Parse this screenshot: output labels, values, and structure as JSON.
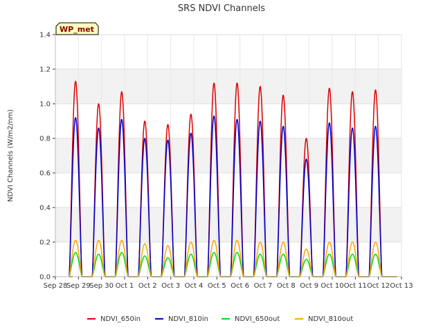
{
  "chart_data": {
    "type": "line",
    "title": "SRS NDVI Channels",
    "ylabel": "NDVI Channels (W/m2/nm)",
    "xlabel": "",
    "badge": "WP_met",
    "ylim": [
      0,
      1.4
    ],
    "yticks": [
      "0.0",
      "0.2",
      "0.4",
      "0.6",
      "0.8",
      "1.0",
      "1.2",
      "1.4"
    ],
    "ytick_values": [
      0,
      0.2,
      0.4,
      0.6,
      0.8,
      1.0,
      1.2,
      1.4
    ],
    "xlim": [
      0,
      15
    ],
    "xticks": [
      "Sep 28",
      "Sep 29",
      "Sep 30",
      "Oct 1",
      "Oct 2",
      "Oct 3",
      "Oct 4",
      "Oct 5",
      "Oct 6",
      "Oct 7",
      "Oct 8",
      "Oct 9",
      "Oct 10",
      "Oct 11",
      "Oct 12",
      "Oct 13"
    ],
    "legend_position": "bottom",
    "grid_bands": true,
    "series": [
      {
        "name": "NDVI_650in",
        "color": "#dd0000",
        "daily_peaks": [
          1.13,
          1.0,
          1.07,
          0.9,
          0.88,
          0.94,
          1.12,
          1.12,
          1.1,
          1.05,
          0.8,
          1.09,
          1.07,
          1.08
        ]
      },
      {
        "name": "NDVI_810in",
        "color": "#0000cc",
        "daily_peaks": [
          0.92,
          0.86,
          0.91,
          0.8,
          0.79,
          0.83,
          0.93,
          0.91,
          0.9,
          0.87,
          0.68,
          0.89,
          0.86,
          0.87
        ]
      },
      {
        "name": "NDVI_650out",
        "color": "#00dd00",
        "daily_peaks": [
          0.14,
          0.13,
          0.14,
          0.12,
          0.11,
          0.13,
          0.14,
          0.14,
          0.13,
          0.13,
          0.1,
          0.13,
          0.13,
          0.13
        ]
      },
      {
        "name": "NDVI_810out",
        "color": "#ffa500",
        "daily_peaks": [
          0.21,
          0.21,
          0.21,
          0.19,
          0.18,
          0.2,
          0.21,
          0.21,
          0.2,
          0.2,
          0.16,
          0.2,
          0.2,
          0.2
        ]
      }
    ]
  }
}
